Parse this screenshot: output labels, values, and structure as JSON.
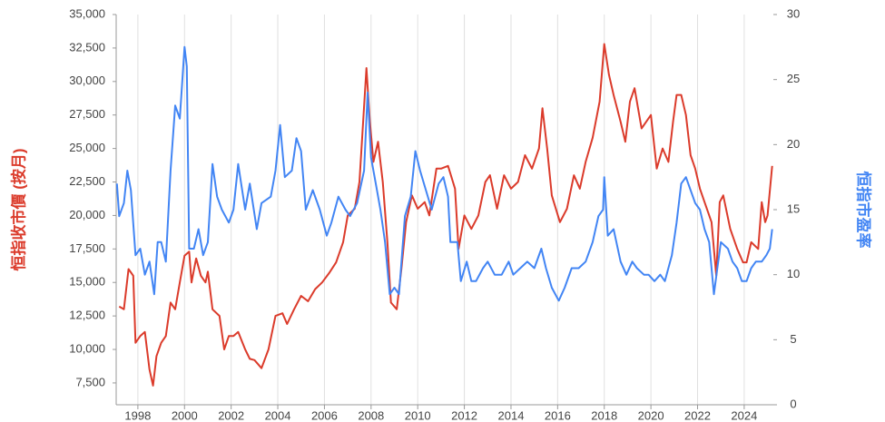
{
  "chart_data": {
    "type": "line",
    "y_label": "恒指收市價 (按月)",
    "y2_label": "恒指市盈率",
    "xlim": [
      1997.07,
      2025.25
    ],
    "xticks": [
      1998,
      2000,
      2002,
      2004,
      2006,
      2008,
      2010,
      2012,
      2014,
      2016,
      2018,
      2020,
      2022,
      2024
    ],
    "ylim": [
      5870,
      35000
    ],
    "yticks": [
      {
        "value": 7500,
        "label": "7,500"
      },
      {
        "value": 10000,
        "label": "10,000"
      },
      {
        "value": 12500,
        "label": "12,500"
      },
      {
        "value": 15000,
        "label": "15,000"
      },
      {
        "value": 17500,
        "label": "17,500"
      },
      {
        "value": 20000,
        "label": "20,000"
      },
      {
        "value": 22500,
        "label": "22,500"
      },
      {
        "value": 25000,
        "label": "25,000"
      },
      {
        "value": 27500,
        "label": "27,500"
      },
      {
        "value": 30000,
        "label": "30,000"
      },
      {
        "value": 32500,
        "label": "32,500"
      },
      {
        "value": 35000,
        "label": "35,000"
      }
    ],
    "y2lim": [
      0,
      30
    ],
    "y2ticks": [
      0,
      5,
      10,
      15,
      20,
      25,
      30
    ],
    "grid": "x",
    "series": [
      {
        "name": "恒指收市價 (按月)",
        "color": "#db3b2b",
        "axis": "y",
        "x": [
          1997.2,
          1997.4,
          1997.6,
          1997.8,
          1997.9,
          1998.1,
          1998.3,
          1998.5,
          1998.65,
          1998.8,
          1999.0,
          1999.2,
          1999.4,
          1999.6,
          1999.8,
          2000.0,
          2000.2,
          2000.3,
          2000.5,
          2000.7,
          2000.9,
          2001.0,
          2001.2,
          2001.5,
          2001.7,
          2001.9,
          2002.1,
          2002.3,
          2002.6,
          2002.8,
          2003.0,
          2003.3,
          2003.6,
          2003.9,
          2004.2,
          2004.4,
          2004.7,
          2005.0,
          2005.3,
          2005.6,
          2005.9,
          2006.2,
          2006.5,
          2006.8,
          2007.0,
          2007.3,
          2007.5,
          2007.8,
          2007.95,
          2008.1,
          2008.3,
          2008.5,
          2008.7,
          2008.85,
          2009.1,
          2009.3,
          2009.5,
          2009.75,
          2010.0,
          2010.3,
          2010.5,
          2010.8,
          2011.0,
          2011.3,
          2011.6,
          2011.75,
          2012.0,
          2012.3,
          2012.6,
          2012.9,
          2013.1,
          2013.4,
          2013.7,
          2014.0,
          2014.3,
          2014.6,
          2014.9,
          2015.2,
          2015.35,
          2015.55,
          2015.75,
          2016.1,
          2016.4,
          2016.7,
          2016.95,
          2017.2,
          2017.5,
          2017.8,
          2018.0,
          2018.2,
          2018.4,
          2018.7,
          2018.9,
          2019.1,
          2019.3,
          2019.6,
          2019.8,
          2020.0,
          2020.25,
          2020.5,
          2020.75,
          2020.95,
          2021.1,
          2021.3,
          2021.5,
          2021.7,
          2021.9,
          2022.1,
          2022.3,
          2022.6,
          2022.8,
          2022.95,
          2023.1,
          2023.4,
          2023.7,
          2023.95,
          2024.1,
          2024.3,
          2024.6,
          2024.75,
          2024.9,
          2025.0,
          2025.2
        ],
        "values": [
          13200,
          13000,
          16000,
          15500,
          10500,
          11000,
          11300,
          8500,
          7300,
          9500,
          10500,
          11000,
          13500,
          13000,
          15000,
          17000,
          17300,
          15000,
          16800,
          15500,
          15000,
          15800,
          13000,
          12500,
          10000,
          11000,
          11000,
          11300,
          10000,
          9300,
          9200,
          8600,
          10000,
          12500,
          12700,
          11900,
          13000,
          14000,
          13600,
          14500,
          15000,
          15700,
          16500,
          18000,
          20000,
          20500,
          22500,
          31000,
          27000,
          24000,
          25500,
          22500,
          18000,
          13500,
          13000,
          16000,
          19500,
          21500,
          20500,
          21000,
          20000,
          23500,
          23500,
          23700,
          22000,
          17500,
          20000,
          19000,
          20000,
          22500,
          23000,
          20500,
          23000,
          22000,
          22500,
          24500,
          23500,
          25000,
          28000,
          25000,
          21500,
          19500,
          20500,
          23000,
          22000,
          24000,
          25800,
          28500,
          32800,
          30500,
          29000,
          27000,
          25500,
          28500,
          29500,
          26500,
          27000,
          27500,
          23500,
          25000,
          24000,
          27000,
          29000,
          29000,
          27500,
          24500,
          23500,
          22000,
          21000,
          19500,
          15500,
          21000,
          21500,
          19000,
          17500,
          16500,
          16500,
          18000,
          17500,
          21000,
          19500,
          20000,
          23700
        ]
      },
      {
        "name": "恒指市盈率",
        "color": "#4285f4",
        "axis": "y2",
        "x": [
          1997.1,
          1997.2,
          1997.4,
          1997.55,
          1997.7,
          1997.9,
          1998.1,
          1998.3,
          1998.5,
          1998.7,
          1998.85,
          1999.0,
          1999.2,
          1999.4,
          1999.6,
          1999.8,
          2000.0,
          2000.1,
          2000.2,
          2000.4,
          2000.6,
          2000.8,
          2001.0,
          2001.2,
          2001.4,
          2001.6,
          2001.9,
          2002.1,
          2002.3,
          2002.6,
          2002.8,
          2003.1,
          2003.3,
          2003.7,
          2003.9,
          2004.1,
          2004.3,
          2004.6,
          2004.8,
          2005.0,
          2005.2,
          2005.5,
          2005.8,
          2006.1,
          2006.3,
          2006.6,
          2006.9,
          2007.1,
          2007.4,
          2007.7,
          2007.85,
          2008.0,
          2008.2,
          2008.4,
          2008.6,
          2008.8,
          2009.0,
          2009.2,
          2009.45,
          2009.7,
          2009.9,
          2010.1,
          2010.35,
          2010.6,
          2010.9,
          2011.1,
          2011.3,
          2011.4,
          2011.7,
          2011.85,
          2012.1,
          2012.3,
          2012.5,
          2012.8,
          2013.0,
          2013.3,
          2013.6,
          2013.9,
          2014.1,
          2014.4,
          2014.7,
          2015.0,
          2015.3,
          2015.5,
          2015.75,
          2016.05,
          2016.3,
          2016.6,
          2016.9,
          2017.2,
          2017.5,
          2017.75,
          2017.95,
          2018.0,
          2018.15,
          2018.4,
          2018.7,
          2018.95,
          2019.2,
          2019.4,
          2019.7,
          2019.9,
          2020.15,
          2020.4,
          2020.6,
          2020.9,
          2021.1,
          2021.3,
          2021.5,
          2021.7,
          2021.9,
          2022.1,
          2022.3,
          2022.5,
          2022.7,
          2022.85,
          2023.0,
          2023.3,
          2023.5,
          2023.7,
          2023.9,
          2024.1,
          2024.3,
          2024.5,
          2024.75,
          2024.95,
          2025.1,
          2025.2
        ],
        "values": [
          17,
          14.5,
          15.5,
          18,
          16.5,
          11.5,
          12,
          10,
          11,
          8.5,
          12.5,
          12.5,
          11,
          18,
          23,
          22,
          27.5,
          26,
          12,
          12,
          13.5,
          11.5,
          12.5,
          18.5,
          16,
          15,
          14,
          15,
          18.5,
          15,
          17,
          13.5,
          15.5,
          16,
          18,
          21.5,
          17.5,
          18,
          20.5,
          19.5,
          15,
          16.5,
          15,
          13,
          14,
          16,
          15,
          14.5,
          15.5,
          18,
          24,
          19,
          17,
          15,
          12.5,
          8.5,
          9,
          8.5,
          14.5,
          16,
          19.5,
          18,
          16.5,
          15,
          17,
          17.5,
          16,
          12.5,
          12.5,
          9.5,
          11,
          9.5,
          9.5,
          10.5,
          11,
          10,
          10,
          11,
          10,
          10.5,
          11,
          10.5,
          12,
          10.5,
          9,
          8,
          9,
          10.5,
          10.5,
          11,
          12.5,
          14.5,
          15,
          17.5,
          13,
          13.5,
          11,
          10,
          11,
          10.5,
          10,
          10,
          9.5,
          10,
          9.5,
          11.5,
          14,
          17,
          17.5,
          16.5,
          15.5,
          15,
          13.5,
          12.5,
          8.5,
          10.5,
          12.5,
          12,
          11,
          10.5,
          9.5,
          9.5,
          10.5,
          11,
          11,
          11.5,
          12,
          13.5
        ]
      }
    ]
  }
}
